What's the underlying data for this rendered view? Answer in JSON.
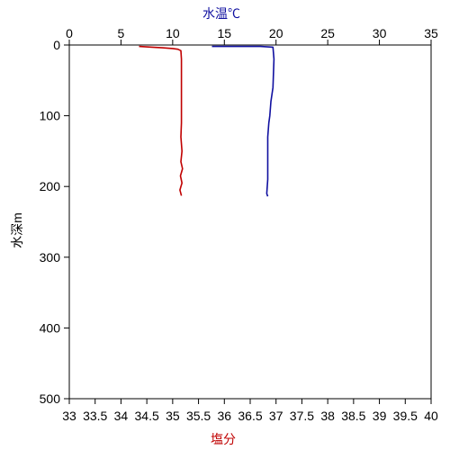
{
  "chart_data": {
    "type": "line",
    "title": "",
    "top_axis": {
      "label": "水温℃",
      "range": [
        0,
        35
      ],
      "ticks": [
        "0",
        "5",
        "10",
        "15",
        "20",
        "25",
        "30",
        "35"
      ],
      "color": "#1010a0"
    },
    "bottom_axis": {
      "label": "塩分",
      "range": [
        33,
        40
      ],
      "ticks": [
        "33",
        "33.5",
        "34",
        "34.5",
        "35",
        "35.5",
        "36",
        "36.5",
        "37",
        "37.5",
        "38",
        "38.5",
        "39",
        "39.5",
        "40"
      ],
      "color": "#c00000"
    },
    "y_axis": {
      "label": "水深m",
      "range": [
        0,
        500
      ],
      "inverted": true,
      "ticks": [
        "0",
        "100",
        "200",
        "300",
        "400",
        "500"
      ]
    },
    "grid": false,
    "series": [
      {
        "axis": "bottom",
        "color": "#c00000",
        "points": [
          [
            34.35,
            2
          ],
          [
            34.6,
            3
          ],
          [
            34.8,
            4
          ],
          [
            35.0,
            5
          ],
          [
            35.1,
            6
          ],
          [
            35.16,
            8
          ],
          [
            35.17,
            20
          ],
          [
            35.17,
            50
          ],
          [
            35.17,
            80
          ],
          [
            35.17,
            110
          ],
          [
            35.16,
            130
          ],
          [
            35.18,
            150
          ],
          [
            35.16,
            165
          ],
          [
            35.19,
            175
          ],
          [
            35.15,
            185
          ],
          [
            35.18,
            195
          ],
          [
            35.14,
            205
          ],
          [
            35.17,
            213
          ]
        ]
      },
      {
        "axis": "top",
        "color": "#1010a0",
        "points": [
          [
            13.8,
            2
          ],
          [
            16.0,
            2
          ],
          [
            18.5,
            2
          ],
          [
            19.7,
            3
          ],
          [
            19.8,
            20
          ],
          [
            19.7,
            60
          ],
          [
            19.5,
            80
          ],
          [
            19.4,
            100
          ],
          [
            19.3,
            110
          ],
          [
            19.2,
            130
          ],
          [
            19.2,
            160
          ],
          [
            19.2,
            190
          ],
          [
            19.1,
            210
          ],
          [
            19.2,
            214
          ]
        ]
      }
    ]
  }
}
